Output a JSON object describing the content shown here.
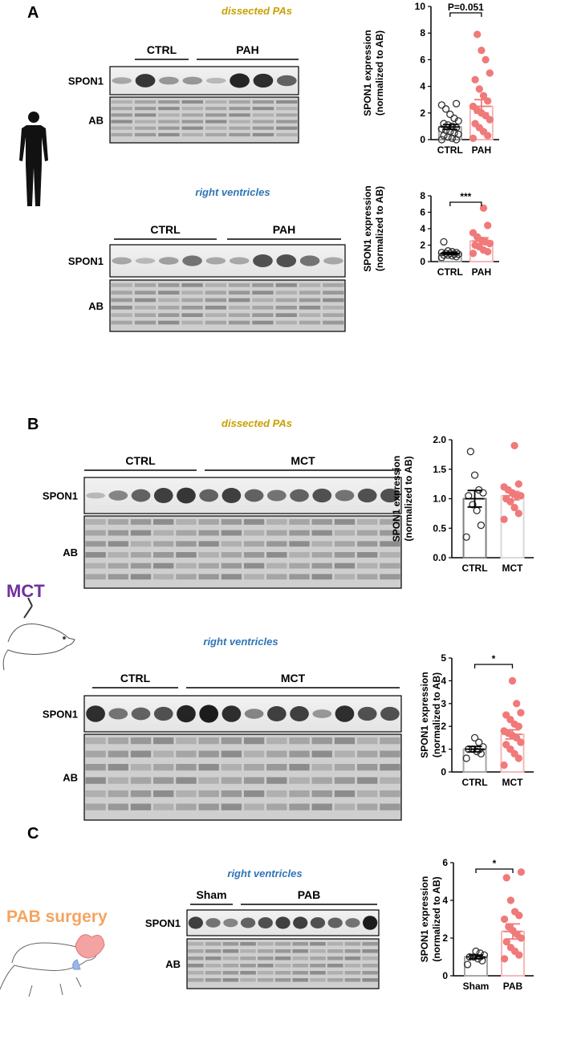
{
  "panel_labels": [
    "A",
    "B",
    "C"
  ],
  "model_labels": [
    "MCT",
    "PAB surgery"
  ],
  "blots": [
    {
      "title": "dissected PAs",
      "groups": [
        "CTRL",
        "PAH"
      ],
      "rows": [
        "SPON1",
        "AB"
      ]
    },
    {
      "title": "right ventricles",
      "groups": [
        "CTRL",
        "PAH"
      ],
      "rows": [
        "SPON1",
        "AB"
      ]
    },
    {
      "title": "dissected PAs",
      "groups": [
        "CTRL",
        "MCT"
      ],
      "rows": [
        "SPON1",
        "AB"
      ]
    },
    {
      "title": "right ventricles",
      "groups": [
        "CTRL",
        "MCT"
      ],
      "rows": [
        "SPON1",
        "AB"
      ]
    },
    {
      "title": "right ventricles",
      "groups": [
        "Sham",
        "PAB"
      ],
      "rows": [
        "SPON1",
        "AB"
      ]
    }
  ],
  "chart_data": [
    {
      "type": "bar",
      "ylabel": [
        "SPON1 expression",
        "(normalized to AB)"
      ],
      "annotation": "P=0.051",
      "categories": [
        "CTRL",
        "PAH"
      ],
      "values": [
        0.95,
        2.5
      ],
      "errors": [
        0.18,
        0.5
      ],
      "colors": [
        "#333333",
        "#f07a7a"
      ],
      "bar_colors": [
        "#a6a6a6",
        "#f5b8b8"
      ],
      "points": [
        [
          0,
          0,
          0.1,
          0.2,
          0.3,
          0.4,
          0.5,
          0.6,
          0.7,
          0.8,
          0.9,
          1.0,
          1.1,
          1.2,
          1.4,
          1.6,
          1.9,
          2.3,
          2.6,
          2.7
        ],
        [
          0.1,
          0.3,
          0.6,
          0.9,
          1.2,
          1.5,
          1.8,
          2.0,
          2.2,
          2.5,
          2.9,
          3.3,
          3.8,
          4.5,
          5.0,
          6.0,
          6.7,
          7.9
        ]
      ],
      "ylim": [
        0,
        10
      ],
      "yticks": [
        0,
        2,
        4,
        6,
        8,
        10
      ]
    },
    {
      "type": "bar",
      "ylabel": [
        "SPON1 expression",
        "(normalized to AB)"
      ],
      "annotation": "***",
      "categories": [
        "CTRL",
        "PAH"
      ],
      "values": [
        1.0,
        2.5
      ],
      "errors": [
        0.12,
        0.4
      ],
      "colors": [
        "#333333",
        "#f07a7a"
      ],
      "bar_colors": [
        "#a6a6a6",
        "#f5b8b8"
      ],
      "points": [
        [
          0.5,
          0.6,
          0.7,
          0.8,
          0.8,
          0.9,
          0.9,
          1.0,
          1.0,
          1.1,
          1.1,
          1.2,
          1.3,
          2.4
        ],
        [
          1.0,
          1.2,
          1.4,
          1.8,
          2.0,
          2.2,
          2.4,
          2.6,
          3.0,
          3.5,
          4.4,
          6.5
        ]
      ],
      "ylim": [
        0,
        8
      ],
      "yticks": [
        0,
        2,
        4,
        6,
        8
      ]
    },
    {
      "type": "bar",
      "ylabel": [
        "SPON1 expression",
        "(normalized to AB)"
      ],
      "categories": [
        "CTRL",
        "MCT"
      ],
      "values": [
        1.0,
        1.05
      ],
      "errors": [
        0.14,
        0.07
      ],
      "colors": [
        "#333333",
        "#f07a7a"
      ],
      "bar_colors": [
        "#7f7f7f",
        "#d9d9d9"
      ],
      "points": [
        [
          0.35,
          0.55,
          0.8,
          0.9,
          1.05,
          1.1,
          1.15,
          1.4,
          1.8
        ],
        [
          0.65,
          0.75,
          0.85,
          0.95,
          1.0,
          1.05,
          1.05,
          1.1,
          1.15,
          1.2,
          1.25,
          1.9
        ]
      ],
      "ylim": [
        0,
        2
      ],
      "yticks": [
        {
          "value": 0,
          "label": "0.0"
        },
        {
          "value": 0.5,
          "label": "0.5"
        },
        {
          "value": 1,
          "label": "1.0"
        },
        {
          "value": 1.5,
          "label": "1.5"
        },
        {
          "value": 2,
          "label": "2.0"
        }
      ]
    },
    {
      "type": "bar",
      "ylabel": [
        "SPON1 expression",
        "(normalized to AB)"
      ],
      "annotation": "*",
      "categories": [
        "CTRL",
        "MCT"
      ],
      "values": [
        1.0,
        1.65
      ],
      "errors": [
        0.12,
        0.2
      ],
      "colors": [
        "#333333",
        "#f07a7a"
      ],
      "bar_colors": [
        "#a6a6a6",
        "#f5b8b8"
      ],
      "points": [
        [
          0.6,
          0.8,
          0.9,
          1.0,
          1.0,
          1.1,
          1.3,
          1.5
        ],
        [
          0.3,
          0.6,
          0.8,
          1.0,
          1.2,
          1.3,
          1.5,
          1.6,
          1.7,
          1.8,
          2.0,
          2.1,
          2.3,
          2.5,
          2.6,
          3.0,
          4.0
        ]
      ],
      "ylim": [
        0,
        5
      ],
      "yticks": [
        0,
        1,
        2,
        3,
        4,
        5
      ]
    },
    {
      "type": "bar",
      "ylabel": [
        "SPON1 expression",
        "(normalized to AB)"
      ],
      "annotation": "*",
      "categories": [
        "Sham",
        "PAB"
      ],
      "values": [
        1.0,
        2.35
      ],
      "errors": [
        0.1,
        0.4
      ],
      "colors": [
        "#333333",
        "#f07a7a"
      ],
      "bar_colors": [
        "#a6a6a6",
        "#f5b8b8"
      ],
      "points": [
        [
          0.6,
          0.8,
          0.9,
          1.0,
          1.0,
          1.1,
          1.2,
          1.3
        ],
        [
          0.9,
          1.1,
          1.3,
          1.5,
          1.8,
          2.0,
          2.2,
          2.4,
          2.6,
          3.0,
          3.2,
          3.4,
          4.0,
          5.2,
          5.5
        ]
      ],
      "ylim": [
        0,
        6
      ],
      "yticks": [
        0,
        2,
        4,
        6
      ]
    }
  ]
}
